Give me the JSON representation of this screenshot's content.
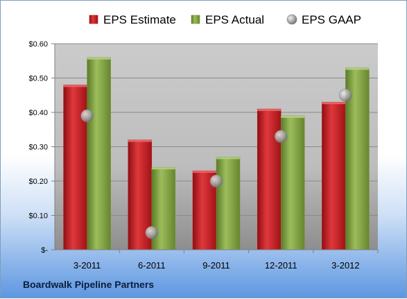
{
  "company": "Boardwalk Pipeline Partners",
  "colors": {
    "estimate": "#c0171c",
    "actual": "#77933c",
    "gaap": "#a0a0a0"
  },
  "chart_data": {
    "type": "bar",
    "categories": [
      "3-2011",
      "6-2011",
      "9-2011",
      "12-2011",
      "3-2012"
    ],
    "series": [
      {
        "name": "EPS Estimate",
        "type": "bar",
        "values": [
          0.48,
          0.32,
          0.23,
          0.41,
          0.43
        ]
      },
      {
        "name": "EPS Actual",
        "type": "bar",
        "values": [
          0.56,
          0.24,
          0.27,
          0.39,
          0.53
        ]
      },
      {
        "name": "EPS GAAP",
        "type": "scatter",
        "values": [
          0.39,
          0.05,
          0.2,
          0.33,
          0.45
        ]
      }
    ],
    "yticks": [
      "$-",
      "$0.10",
      "$0.20",
      "$0.30",
      "$0.40",
      "$0.50",
      "$0.60"
    ],
    "ylim": [
      0,
      0.6
    ],
    "grid": true,
    "legend_position": "top"
  }
}
